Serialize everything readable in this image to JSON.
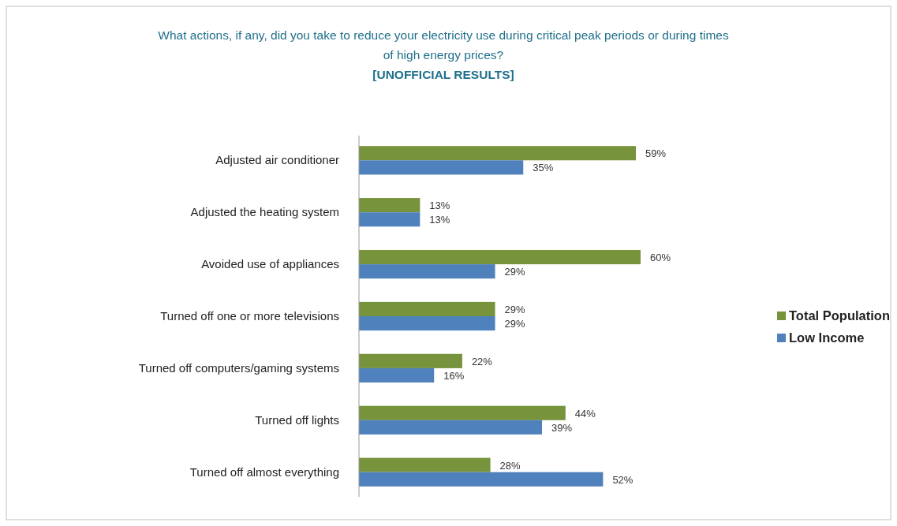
{
  "chart_data": {
    "type": "bar",
    "orientation": "horizontal",
    "title": "What actions, if any, did you take to reduce your electricity use during critical peak periods or during times of high energy prices?",
    "subtitle": "[UNOFFICIAL RESULTS]",
    "categories": [
      "Adjusted air conditioner",
      "Adjusted the heating system",
      "Avoided use of appliances",
      "Turned off one or more televisions",
      "Turned off computers/gaming systems",
      "Turned off lights",
      "Turned off almost everything"
    ],
    "series": [
      {
        "name": "Total Population",
        "color": "#77933c",
        "values": [
          59,
          13,
          60,
          29,
          22,
          44,
          28
        ],
        "value_labels": [
          "59%",
          "13%",
          "60%",
          "29%",
          "22%",
          "44%",
          "28%"
        ]
      },
      {
        "name": "Low Income",
        "color": "#4f81bd",
        "values": [
          35,
          13,
          29,
          29,
          16,
          39,
          52
        ],
        "value_labels": [
          "35%",
          "13%",
          "29%",
          "29%",
          "16%",
          "39%",
          "52%"
        ]
      }
    ],
    "legend": "right"
  }
}
